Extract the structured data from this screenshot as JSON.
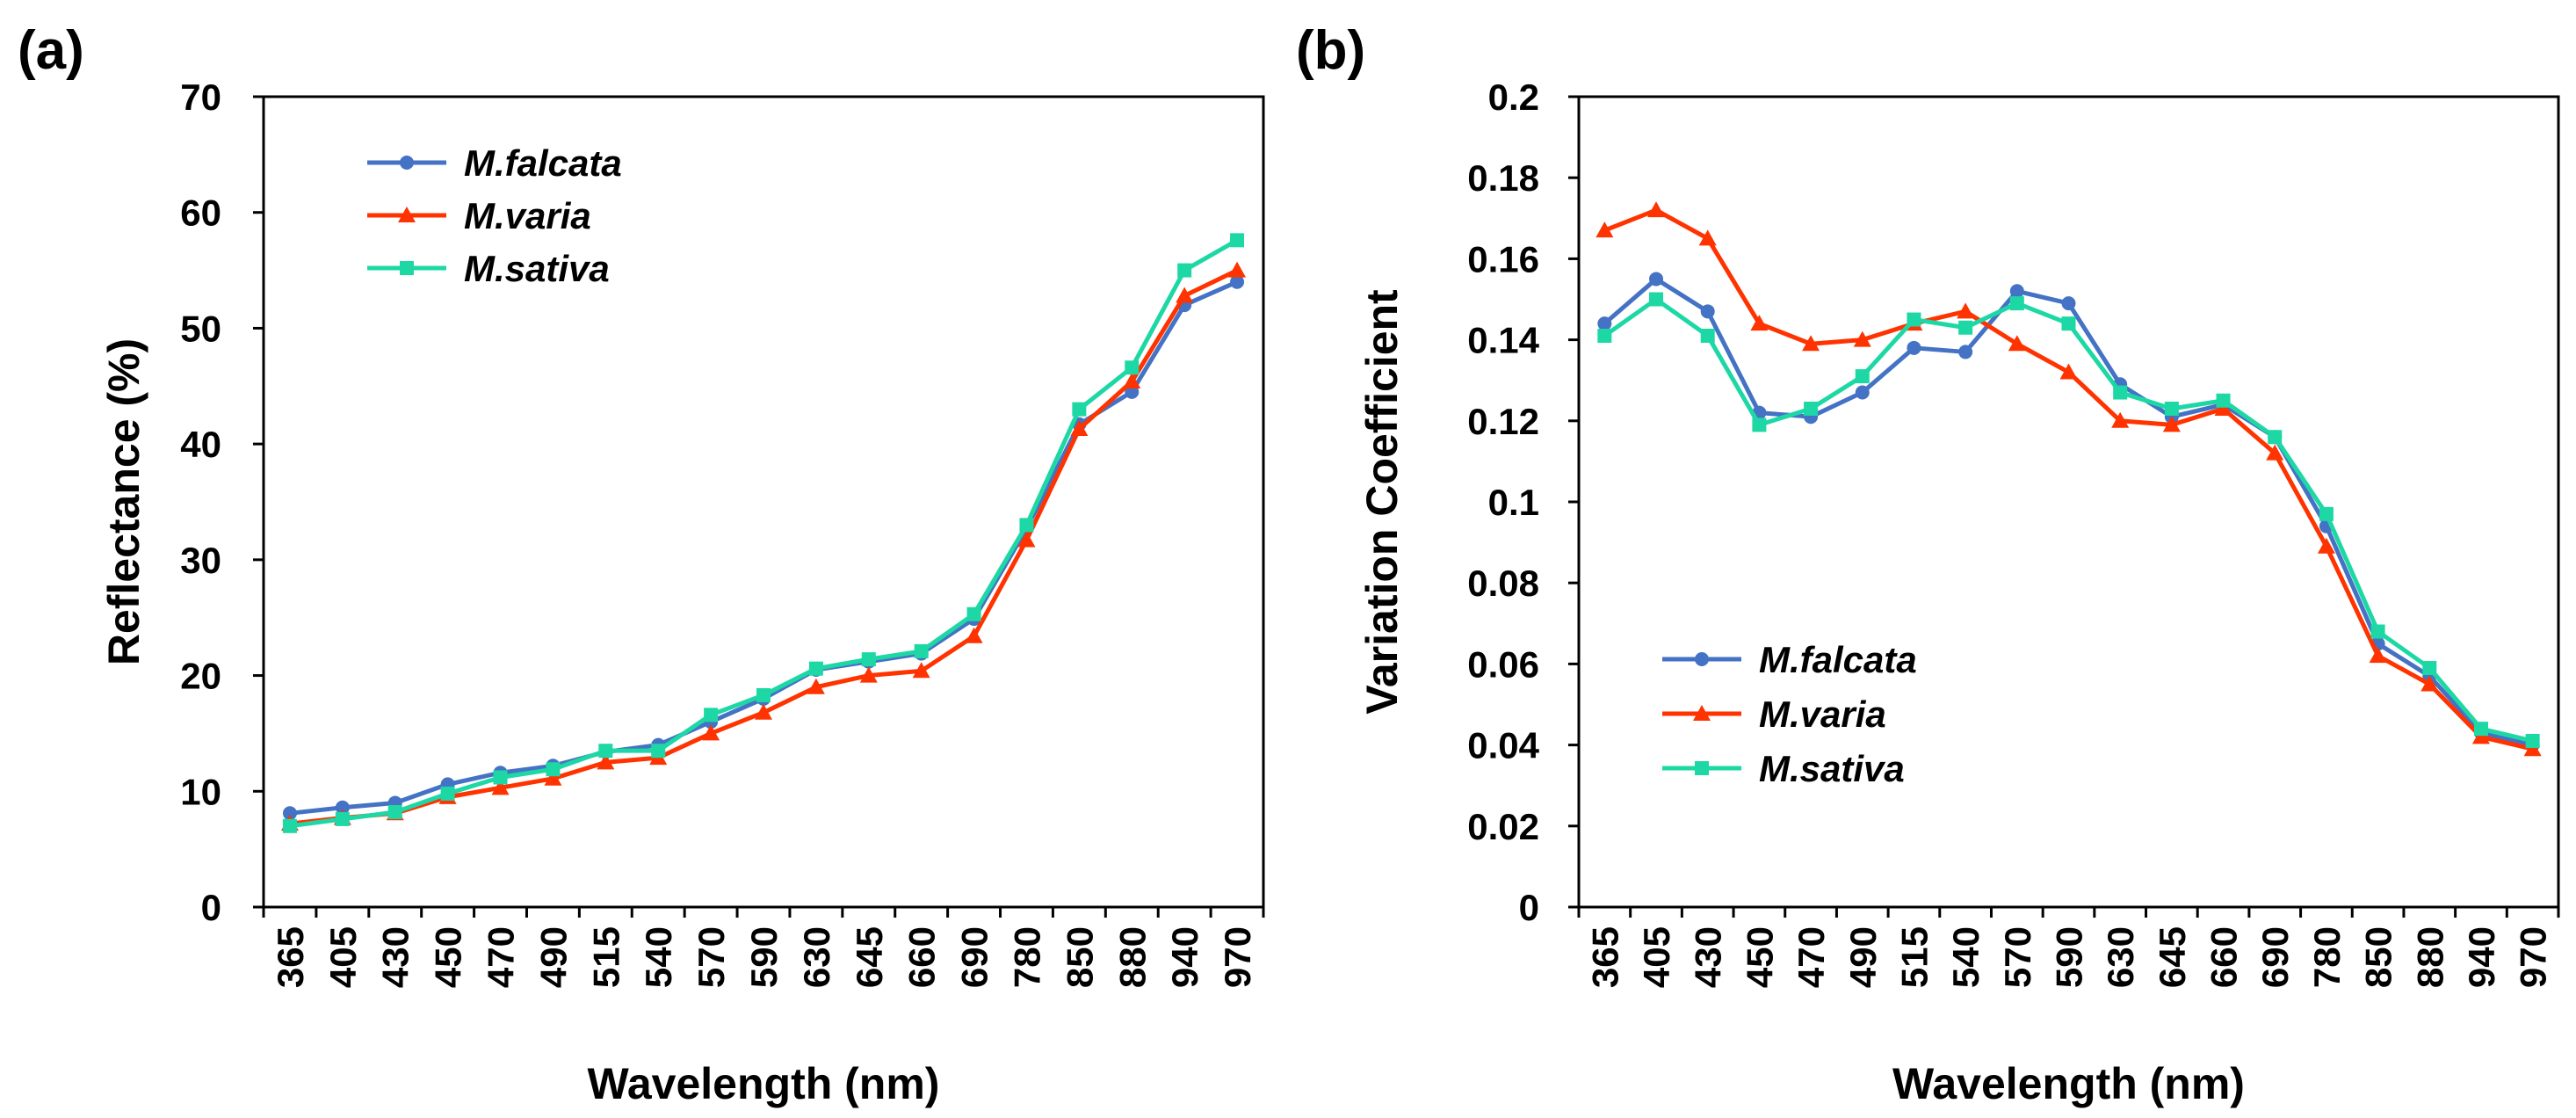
{
  "chart_data": [
    {
      "panel_label": "(a)",
      "type": "line",
      "title": "",
      "xlabel": "Wavelength (nm)",
      "ylabel": "Reflectance (%)",
      "ylim": [
        0,
        70
      ],
      "yticks": [
        "0",
        "10",
        "20",
        "30",
        "40",
        "50",
        "60",
        "70"
      ],
      "categories": [
        "365",
        "405",
        "430",
        "450",
        "470",
        "490",
        "515",
        "540",
        "570",
        "590",
        "630",
        "645",
        "660",
        "690",
        "780",
        "850",
        "880",
        "940",
        "970"
      ],
      "legend_position": "top-left",
      "series": [
        {
          "name": "M.falcata",
          "color": "#4472C4",
          "marker": "circle",
          "values": [
            8.1,
            8.6,
            9.0,
            10.6,
            11.6,
            12.2,
            13.4,
            14.0,
            16.0,
            18.0,
            20.5,
            21.2,
            21.9,
            24.9,
            32.7,
            41.7,
            44.5,
            52.0,
            54.0
          ]
        },
        {
          "name": "M.varia",
          "color": "#FF3300",
          "marker": "triangle",
          "values": [
            7.2,
            7.7,
            8.1,
            9.5,
            10.3,
            11.1,
            12.5,
            12.9,
            15.0,
            16.8,
            19.0,
            20.0,
            20.4,
            23.4,
            31.7,
            41.3,
            45.4,
            52.8,
            55.0
          ]
        },
        {
          "name": "M.sativa",
          "color": "#1DD8A5",
          "marker": "square",
          "values": [
            7.0,
            7.6,
            8.2,
            9.8,
            11.2,
            11.9,
            13.5,
            13.5,
            16.6,
            18.3,
            20.6,
            21.4,
            22.1,
            25.3,
            33.0,
            43.0,
            46.6,
            55.0,
            57.6
          ]
        }
      ]
    },
    {
      "panel_label": "(b)",
      "type": "line",
      "title": "",
      "xlabel": "Wavelength (nm)",
      "ylabel": "Variation Coefficient",
      "ylim": [
        0,
        0.2
      ],
      "yticks": [
        "0",
        "0.02",
        "0.04",
        "0.06",
        "0.08",
        "0.1",
        "0.12",
        "0.14",
        "0.16",
        "0.18",
        "0.2"
      ],
      "categories": [
        "365",
        "405",
        "430",
        "450",
        "470",
        "490",
        "515",
        "540",
        "570",
        "590",
        "630",
        "645",
        "660",
        "690",
        "780",
        "850",
        "880",
        "940",
        "970"
      ],
      "legend_position": "bottom-left",
      "series": [
        {
          "name": "M.falcata",
          "color": "#4472C4",
          "marker": "circle",
          "values": [
            0.144,
            0.155,
            0.147,
            0.122,
            0.121,
            0.127,
            0.138,
            0.137,
            0.152,
            0.149,
            0.129,
            0.121,
            0.124,
            0.116,
            0.094,
            0.065,
            0.057,
            0.043,
            0.04
          ]
        },
        {
          "name": "M.varia",
          "color": "#FF3300",
          "marker": "triangle",
          "values": [
            0.167,
            0.172,
            0.165,
            0.144,
            0.139,
            0.14,
            0.144,
            0.147,
            0.139,
            0.132,
            0.12,
            0.119,
            0.123,
            0.112,
            0.089,
            0.062,
            0.055,
            0.042,
            0.039
          ]
        },
        {
          "name": "M.sativa",
          "color": "#1DD8A5",
          "marker": "square",
          "values": [
            0.141,
            0.15,
            0.141,
            0.119,
            0.123,
            0.131,
            0.145,
            0.143,
            0.149,
            0.144,
            0.127,
            0.123,
            0.125,
            0.116,
            0.097,
            0.068,
            0.059,
            0.044,
            0.041
          ]
        }
      ]
    }
  ]
}
